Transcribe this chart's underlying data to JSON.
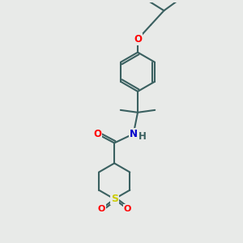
{
  "bg_color": "#e8eae8",
  "bond_color": "#3a6060",
  "atom_colors": {
    "O": "#ff0000",
    "N": "#0000cc",
    "S": "#cccc00",
    "H": "#3a6060",
    "C": "#3a6060"
  },
  "line_width": 1.5,
  "font_size": 8.5,
  "fig_width": 3.0,
  "fig_height": 3.0,
  "dpi": 100
}
